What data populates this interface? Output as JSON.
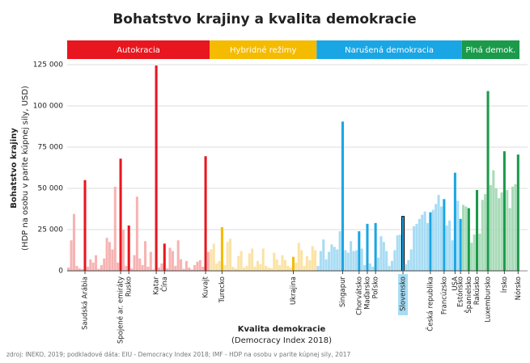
{
  "chart_data": {
    "type": "bar",
    "title": "Bohatstvo krajiny a kvalita demokracie",
    "y_label": "Bohatstvo krajiny",
    "y_sublabel": "(HDP na osobu v parite kúpnej sily, USD)",
    "x_label": "Kvalita demokracie",
    "x_sublabel": "(Democracy Index 2018)",
    "source": "zdroj: INEKO, 2019; podkladové dáta: EIU - Democracy Index 2018; IMF - HDP na osobu v parite kúpnej sily, 2017",
    "ylim": [
      0,
      125000
    ],
    "yticks": [
      0,
      {
        "value": 25000,
        "label": "25 000"
      },
      {
        "value": 50000,
        "label": "50 000"
      },
      {
        "value": 75000,
        "label": "75 000"
      },
      {
        "value": 100000,
        "label": "100 000"
      },
      {
        "value": 125000,
        "label": "125 000"
      }
    ],
    "grid": true,
    "emphasis": {
      "series": 2,
      "index": 31,
      "outline": "#000000",
      "label_background": "#a8dcf4"
    },
    "series": [
      {
        "name": "Autokracia",
        "color": "#e8161e",
        "light_color": "#f7b3b3",
        "categories": [
          null,
          null,
          null,
          null,
          null,
          null,
          "Saudská Arábia",
          null,
          null,
          null,
          null,
          null,
          null,
          null,
          null,
          null,
          null,
          null,
          null,
          "Spojené ar. emiráty",
          null,
          null,
          "Rusko",
          null,
          null,
          null,
          null,
          null,
          null,
          null,
          null,
          null,
          "Katar",
          null,
          null,
          "Čína",
          null,
          null,
          null,
          null,
          null,
          null,
          null,
          null,
          null,
          null,
          null,
          null,
          null,
          null,
          "Kuvajt",
          null
        ],
        "values": [
          2000,
          18500,
          34500,
          3000,
          1500,
          1000,
          55000,
          2500,
          7000,
          5000,
          9500,
          1200,
          3500,
          7500,
          20000,
          17500,
          13000,
          51000,
          5000,
          68000,
          25000,
          3000,
          27500,
          1500,
          9500,
          45000,
          7500,
          3500,
          18000,
          2500,
          11500,
          800,
          124500,
          2000,
          4500,
          16500,
          1500,
          14000,
          12000,
          3000,
          18500,
          7000,
          1200,
          6000,
          2000,
          800,
          3500,
          5500,
          6500,
          2500,
          69500,
          11500
        ]
      },
      {
        "name": "Hybridné režimy",
        "color": "#f5bb00",
        "light_color": "#fbe3a6",
        "categories": [
          null,
          null,
          null,
          null,
          "Turecko",
          null,
          null,
          null,
          null,
          null,
          null,
          null,
          null,
          null,
          null,
          null,
          null,
          null,
          null,
          null,
          null,
          null,
          null,
          null,
          null,
          null,
          null,
          null,
          null,
          null,
          "Ukrajina",
          null,
          null,
          null,
          null,
          null,
          null,
          null,
          null
        ],
        "values": [
          13000,
          16500,
          4500,
          6000,
          26500,
          3500,
          17500,
          19500,
          2500,
          1500,
          9000,
          12000,
          2000,
          3000,
          10500,
          13500,
          2500,
          6000,
          4000,
          13500,
          3000,
          2000,
          1500,
          11000,
          7000,
          3500,
          9500,
          6500,
          3000,
          2000,
          8500,
          5000,
          17000,
          12500,
          3000,
          9000,
          6500,
          15000,
          12500
        ]
      },
      {
        "name": "Narušená demokracia",
        "color": "#1aa6e4",
        "light_color": "#a8dcf4",
        "categories": [
          null,
          null,
          null,
          null,
          null,
          null,
          null,
          null,
          null,
          "Singapur",
          null,
          null,
          null,
          null,
          null,
          "Chorvátsko",
          null,
          null,
          "Maďarsko",
          null,
          null,
          "Poľsko",
          null,
          null,
          null,
          null,
          null,
          null,
          null,
          null,
          null,
          "Slovensko",
          null,
          null,
          null,
          null,
          null,
          null,
          null,
          null,
          null,
          "Česká republika",
          null,
          null,
          null,
          null,
          "Francúzsko",
          null,
          null,
          null,
          "USA",
          null,
          "Estónsko"
        ],
        "values": [
          3000,
          12000,
          19000,
          7000,
          11500,
          16000,
          14500,
          13000,
          24000,
          90500,
          12500,
          11000,
          18000,
          12000,
          12500,
          24000,
          13500,
          3500,
          28500,
          4500,
          2500,
          29000,
          8000,
          21000,
          17500,
          12000,
          3000,
          6000,
          12500,
          21500,
          22000,
          33000,
          4000,
          6500,
          13000,
          27000,
          28500,
          31500,
          34000,
          36000,
          29000,
          35500,
          37000,
          40500,
          46000,
          39000,
          43500,
          27500,
          30500,
          18500,
          59500,
          42500,
          31500
        ]
      },
      {
        "name": "Plná demok.",
        "color": "#1a9a4a",
        "light_color": "#a8dbb8",
        "categories": [
          null,
          null,
          "Španielsko",
          null,
          null,
          "Rakúsko",
          null,
          null,
          null,
          "Luxembursko",
          null,
          null,
          null,
          null,
          null,
          "Írsko",
          null,
          null,
          null,
          null,
          "Nórsko"
        ],
        "values": [
          40000,
          39000,
          38000,
          17000,
          22000,
          49000,
          22500,
          43000,
          46500,
          109000,
          52000,
          61000,
          50000,
          44000,
          47500,
          72500,
          49000,
          38000,
          51000,
          52500,
          70500
        ]
      }
    ]
  }
}
